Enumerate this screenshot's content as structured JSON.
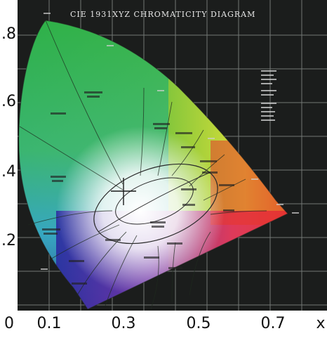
{
  "title": "CIE 1931XYZ CHROMATICITY DIAGRAM",
  "y_ticks": [
    ".8",
    ".6",
    ".4",
    ".2"
  ],
  "x_ticks": [
    "0",
    "0.1",
    "0.3",
    "0.5",
    "0.7"
  ],
  "x_axis_label": "x",
  "colors": {
    "background": "#1b1d1c",
    "grid": "#8a8f8c",
    "page": "#ffffff",
    "tick_text": "#111111"
  }
}
